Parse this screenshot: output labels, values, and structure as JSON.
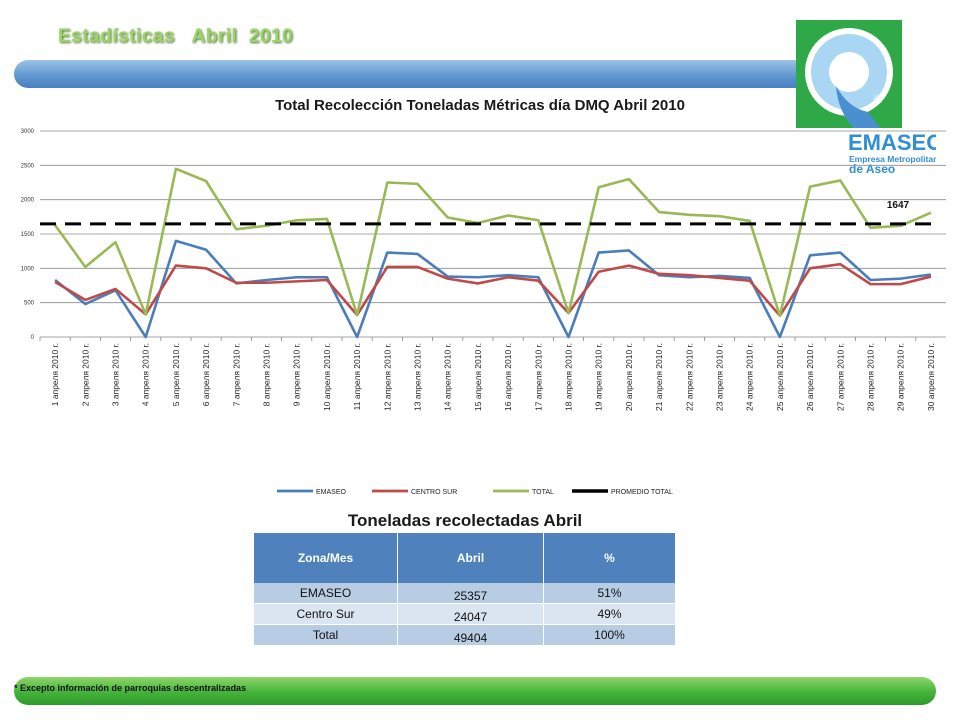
{
  "header": {
    "title": "Estadísticas   Abril  2010"
  },
  "logo": {
    "name": "EMASEO",
    "subtitle_line1": "Empresa Metropolitana",
    "subtitle_line2": "de Aseo"
  },
  "chart_data": {
    "type": "line",
    "title": "Total Recolección Toneladas Métricas día DMQ Abril 2010",
    "xlabel": "",
    "ylabel": "",
    "ylim": [
      0,
      3000
    ],
    "yticks": [
      0,
      500,
      1000,
      1500,
      2000,
      2500,
      3000
    ],
    "grid": true,
    "legend_position": "bottom",
    "categories": [
      "1 апреля 2010 г.",
      "2 апреля 2010 г.",
      "3 апреля 2010 г.",
      "4 апреля 2010 г.",
      "5 апреля 2010 г.",
      "6 апреля 2010 г.",
      "7 апреля 2010 г.",
      "8 апреля 2010 г.",
      "9 апреля 2010 г.",
      "10 апреля 2010 г.",
      "11 апреля 2010 г.",
      "12 апреля 2010 г.",
      "13 апреля 2010 г.",
      "14 апреля 2010 г.",
      "15 апреля 2010 г.",
      "16 апреля 2010 г.",
      "17 апреля 2010 г.",
      "18 апреля 2010 г.",
      "19 апреля 2010 г.",
      "20 апреля 2010 г.",
      "21 апреля 2010 г.",
      "22 апреля 2010 г.",
      "23 апреля 2010 г.",
      "24 апреля 2010 г.",
      "25 апреля 2010 г.",
      "26 апреля 2010 г.",
      "27 апреля 2010 г.",
      "28 апреля 2010 г.",
      "29 апреля 2010 г.",
      "30 апреля 2010 г."
    ],
    "series": [
      {
        "name": "EMASEO",
        "color": "#4a7ebb",
        "values": [
          830,
          480,
          680,
          0,
          1400,
          1270,
          780,
          830,
          870,
          870,
          0,
          1230,
          1210,
          880,
          870,
          900,
          870,
          0,
          1230,
          1260,
          900,
          870,
          890,
          860,
          0,
          1190,
          1230,
          830,
          850,
          910
        ]
      },
      {
        "name": "CENTRO SUR",
        "color": "#be4b48",
        "values": [
          800,
          540,
          700,
          330,
          1040,
          1000,
          790,
          790,
          810,
          830,
          320,
          1020,
          1020,
          850,
          780,
          870,
          820,
          350,
          950,
          1040,
          920,
          900,
          860,
          820,
          310,
          1000,
          1060,
          770,
          770,
          880
        ]
      },
      {
        "name": "TOTAL",
        "color": "#98b954",
        "values": [
          1630,
          1020,
          1380,
          330,
          2450,
          2270,
          1570,
          1620,
          1700,
          1720,
          320,
          2250,
          2230,
          1740,
          1660,
          1770,
          1700,
          350,
          2180,
          2300,
          1820,
          1780,
          1760,
          1690,
          310,
          2190,
          2280,
          1590,
          1620,
          1810
        ]
      },
      {
        "name": "PROMEDIO TOTAL",
        "color": "#000000",
        "value": 1647,
        "dashed": true
      }
    ],
    "annotation": "1647"
  },
  "table": {
    "title": "Toneladas  recolectadas  Abril",
    "headers": [
      "Zona/Mes",
      "Abril",
      "%"
    ],
    "rows": [
      [
        "EMASEO",
        "25357",
        "51%"
      ],
      [
        "Centro Sur",
        "24047",
        "49%"
      ],
      [
        "Total",
        "49404",
        "100%"
      ]
    ]
  },
  "footnote": "* Excepto información  de parroquias descentralizadas"
}
